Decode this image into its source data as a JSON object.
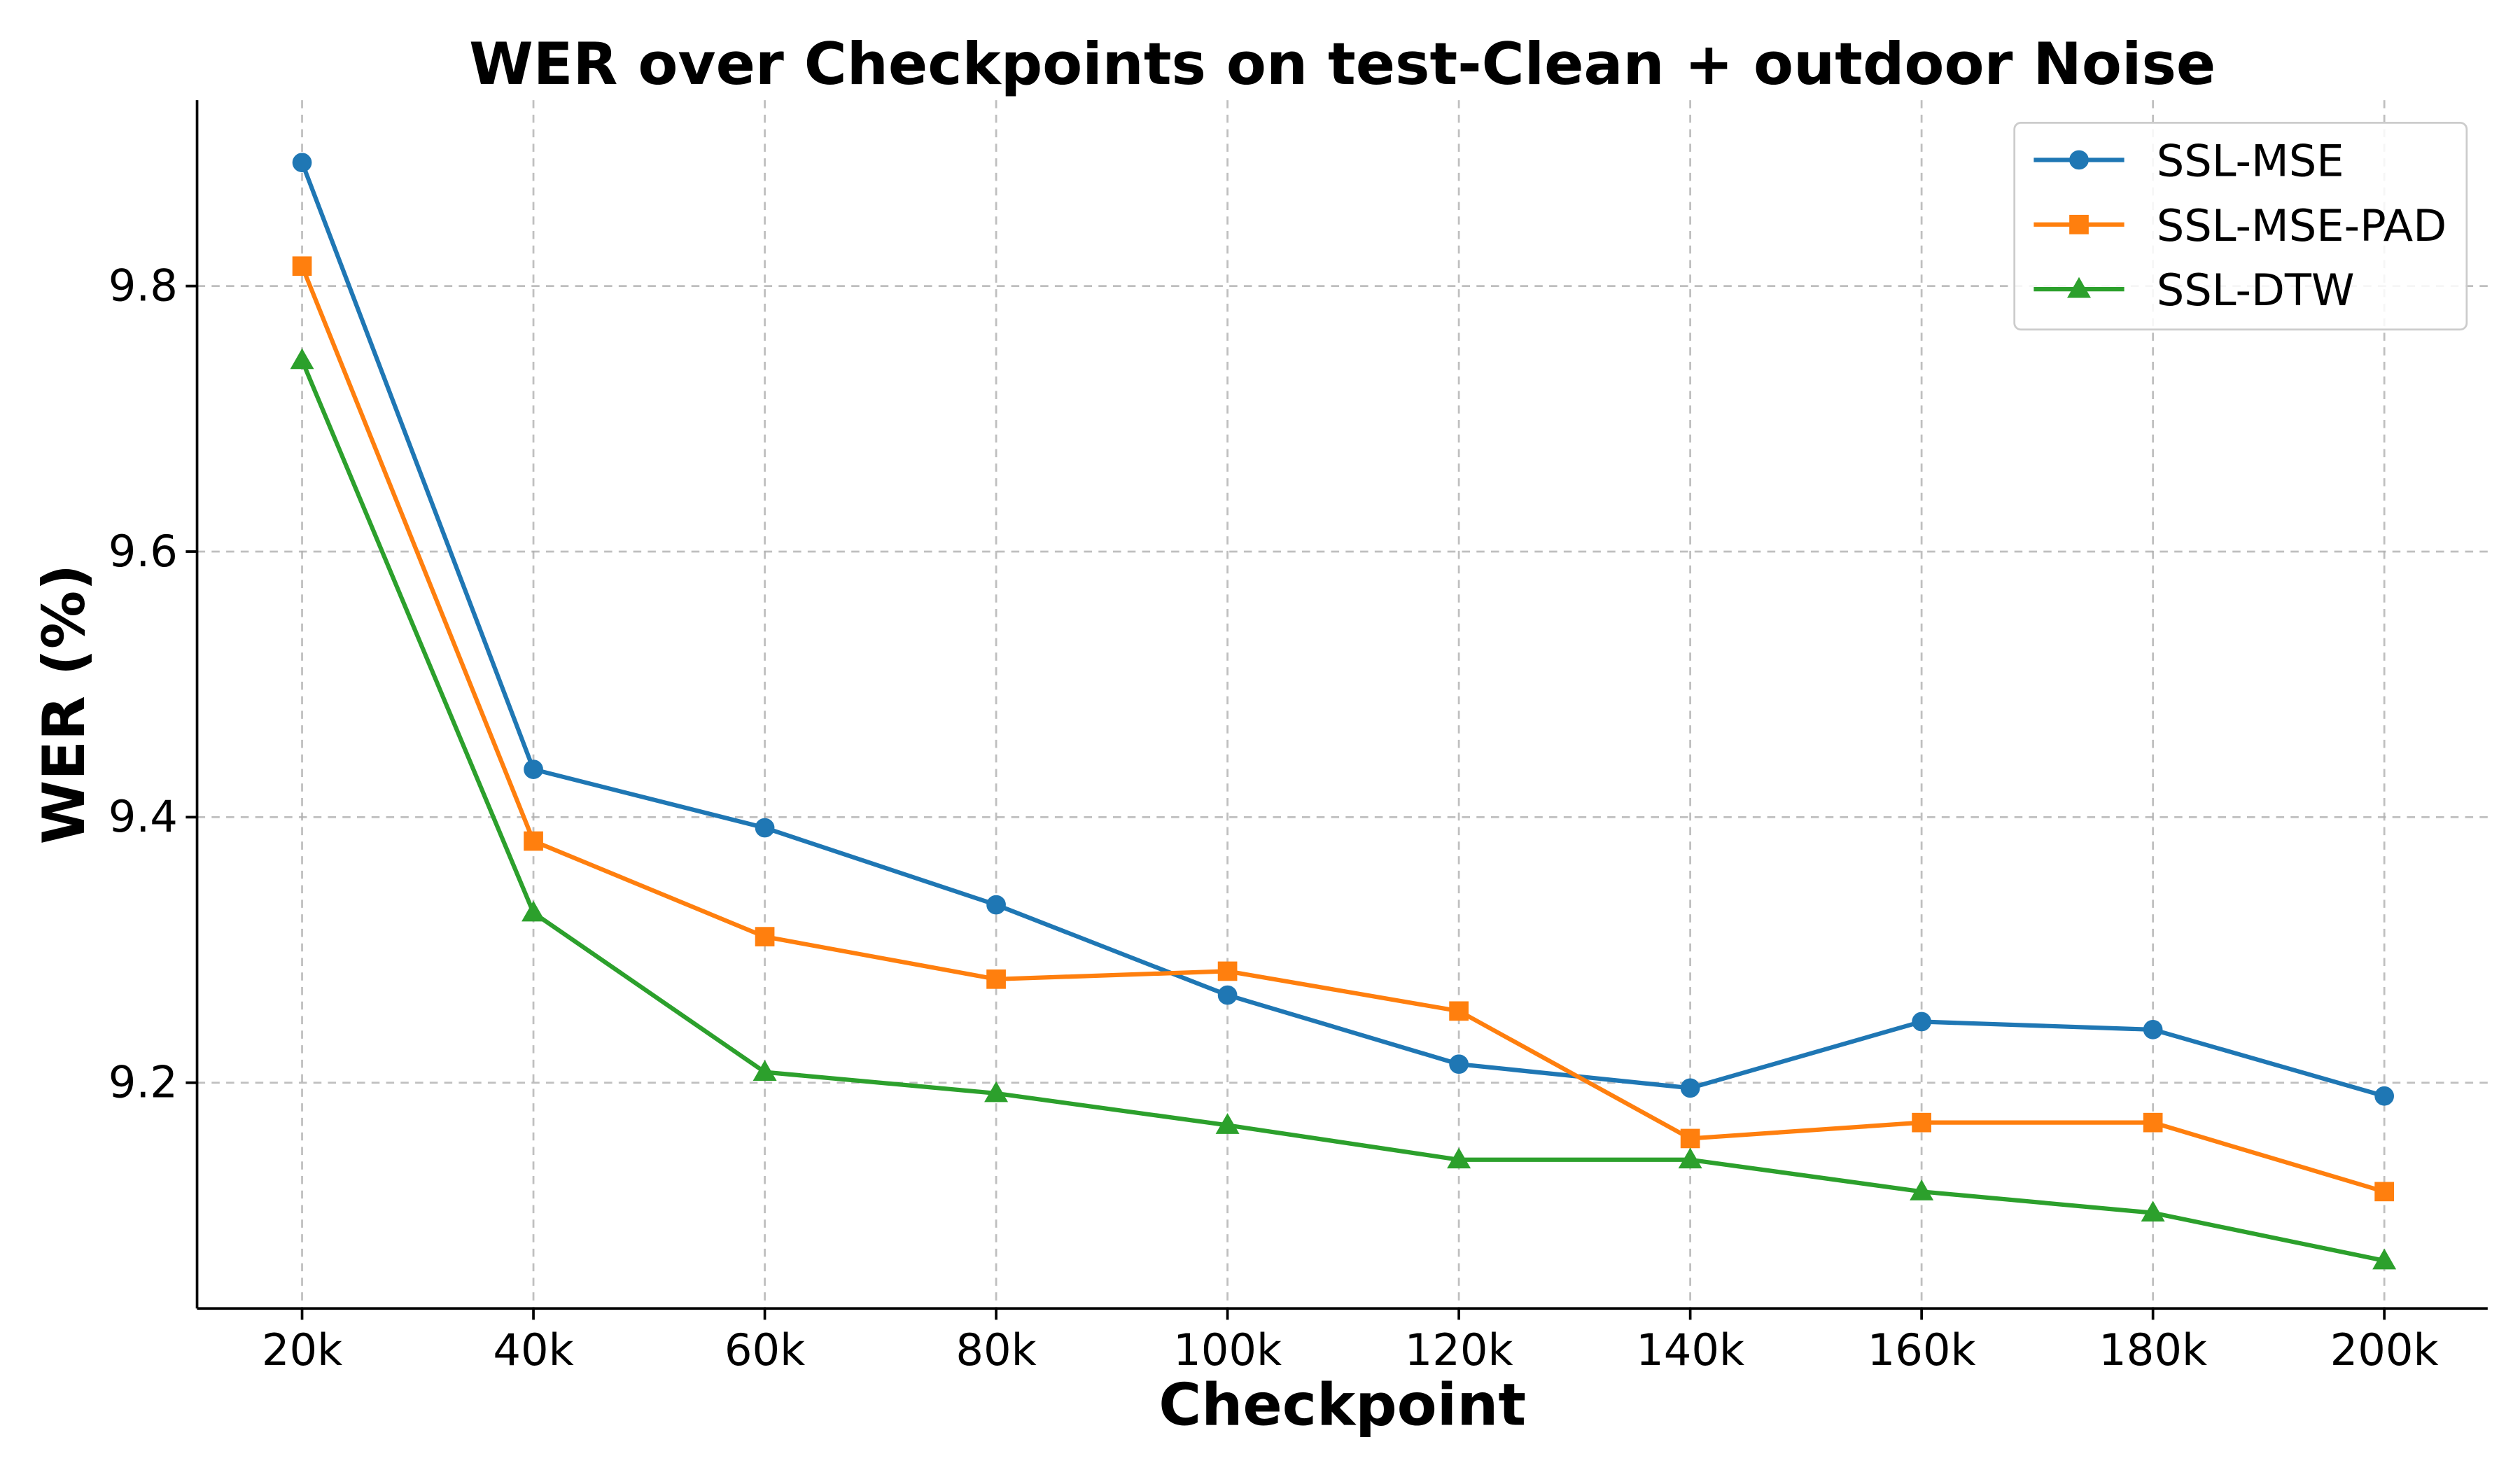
{
  "chart_data": {
    "type": "line",
    "title": "WER over Checkpoints on test-Clean + outdoor Noise",
    "xlabel": "Checkpoint",
    "ylabel": "WER (%)",
    "categories": [
      "20k",
      "40k",
      "60k",
      "80k",
      "100k",
      "120k",
      "140k",
      "160k",
      "180k",
      "200k"
    ],
    "ylim": [
      9.03,
      9.94
    ],
    "yticks": [
      9.2,
      9.4,
      9.6,
      9.8
    ],
    "ytick_labels": [
      "9.2",
      "9.4",
      "9.6",
      "9.8"
    ],
    "grid": true,
    "legend_position": "top-right",
    "series": [
      {
        "name": "SSL-MSE",
        "color": "#1f77b4",
        "marker": "circle",
        "values": [
          9.893,
          9.436,
          9.392,
          9.334,
          9.266,
          9.214,
          9.196,
          9.246,
          9.24,
          9.19
        ]
      },
      {
        "name": "SSL-MSE-PAD",
        "color": "#ff7f0e",
        "marker": "square",
        "values": [
          9.815,
          9.382,
          9.31,
          9.278,
          9.284,
          9.254,
          9.158,
          9.17,
          9.17,
          9.118
        ]
      },
      {
        "name": "SSL-DTW",
        "color": "#2ca02c",
        "marker": "triangle",
        "values": [
          9.744,
          9.328,
          9.208,
          9.192,
          9.168,
          9.142,
          9.142,
          9.118,
          9.102,
          9.066
        ]
      }
    ]
  }
}
